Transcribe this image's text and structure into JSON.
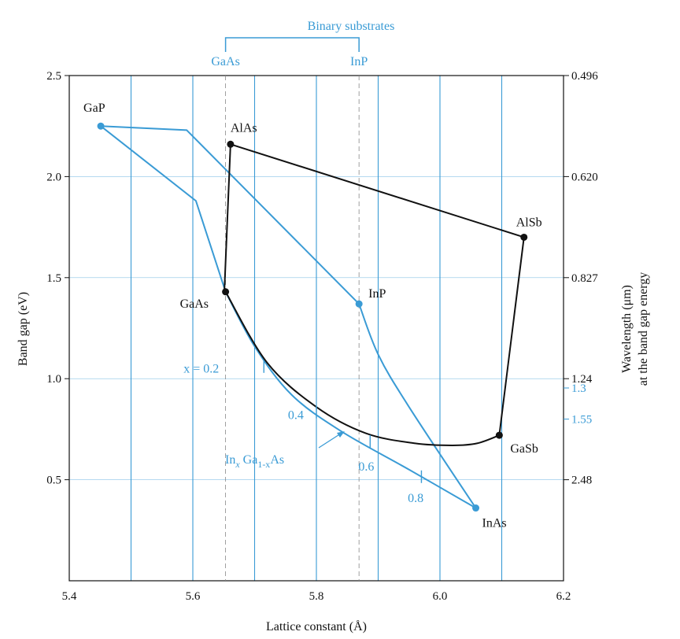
{
  "chart_data": {
    "type": "scatter",
    "xlabel": "Lattice constant (Å)",
    "ylabel": "Band gap (eV)",
    "y2label_line1": "Wavelength (μm)",
    "y2label_line2": "at the band gap energy",
    "xlim": [
      5.4,
      6.2
    ],
    "ylim": [
      0,
      2.5
    ],
    "grid": "vertical",
    "x_ticks": [
      "5.4",
      "5.6",
      "5.8",
      "6.0",
      "6.2"
    ],
    "x_tick_values": [
      5.4,
      5.6,
      5.8,
      6.0,
      6.2
    ],
    "y_ticks": [
      "0.5",
      "1.0",
      "1.5",
      "2.0",
      "2.5"
    ],
    "y_tick_values": [
      0.5,
      1.0,
      1.5,
      2.0,
      2.5
    ],
    "wavelength_ticks": [
      {
        "label": "0.496",
        "y": 2.5,
        "color": "black"
      },
      {
        "label": "0.620",
        "y": 2.0,
        "color": "black"
      },
      {
        "label": "0.827",
        "y": 1.5,
        "color": "black"
      },
      {
        "label": "1.24",
        "y": 1.0,
        "color": "black"
      },
      {
        "label": "1.3",
        "y": 0.954,
        "color": "blue"
      },
      {
        "label": "1.55",
        "y": 0.8,
        "color": "blue"
      },
      {
        "label": "2.48",
        "y": 0.5,
        "color": "black"
      }
    ],
    "points": [
      {
        "name": "GaP",
        "x": 5.451,
        "y": 2.25,
        "color": "blue"
      },
      {
        "name": "AlAs",
        "x": 5.661,
        "y": 2.16,
        "color": "black"
      },
      {
        "name": "AlSb",
        "x": 6.136,
        "y": 1.7,
        "color": "black"
      },
      {
        "name": "GaAs",
        "x": 5.653,
        "y": 1.43,
        "color": "black"
      },
      {
        "name": "InP",
        "x": 5.869,
        "y": 1.37,
        "color": "blue"
      },
      {
        "name": "GaSb",
        "x": 6.096,
        "y": 0.72,
        "color": "black"
      },
      {
        "name": "InAs",
        "x": 6.058,
        "y": 0.36,
        "color": "blue"
      }
    ],
    "curves": [
      {
        "color": "blue",
        "points": [
          [
            5.451,
            2.25
          ],
          [
            5.59,
            2.23
          ],
          [
            5.869,
            1.37
          ]
        ]
      },
      {
        "color": "blue",
        "points": [
          [
            5.451,
            2.25
          ],
          [
            5.605,
            1.88
          ],
          [
            5.653,
            1.43
          ]
        ]
      },
      {
        "color": "blue",
        "points": [
          [
            5.869,
            1.37
          ],
          [
            5.9,
            1.12
          ],
          [
            5.95,
            0.86
          ],
          [
            6.058,
            0.36
          ]
        ]
      },
      {
        "color": "blue",
        "points": [
          [
            5.653,
            1.43
          ],
          [
            5.7,
            1.16
          ],
          [
            5.76,
            0.92
          ],
          [
            5.84,
            0.74
          ],
          [
            5.95,
            0.55
          ],
          [
            6.058,
            0.36
          ]
        ]
      },
      {
        "color": "black",
        "points": [
          [
            5.651,
            1.43
          ],
          [
            5.661,
            2.16
          ]
        ]
      },
      {
        "color": "black",
        "points": [
          [
            5.661,
            2.16
          ],
          [
            6.136,
            1.7
          ]
        ]
      },
      {
        "color": "black",
        "points": [
          [
            6.136,
            1.7
          ],
          [
            6.096,
            0.72
          ]
        ]
      },
      {
        "color": "black",
        "points": [
          [
            6.096,
            0.72
          ],
          [
            6.06,
            0.68
          ],
          [
            6.02,
            0.67
          ],
          [
            5.96,
            0.68
          ],
          [
            5.88,
            0.73
          ],
          [
            5.8,
            0.86
          ],
          [
            5.72,
            1.08
          ],
          [
            5.653,
            1.43
          ]
        ]
      }
    ],
    "composition_marks": [
      {
        "label": "x = 0.2",
        "x": 5.715,
        "y": 1.06,
        "label_x": 5.585,
        "label_y": 1.03
      },
      {
        "label": "0.4",
        "x": 5.8,
        "y": 0.835,
        "label_x": 5.754,
        "label_y": 0.8
      },
      {
        "label": "0.6",
        "x": 5.887,
        "y": 0.69,
        "label_x": 5.868,
        "label_y": 0.545
      },
      {
        "label": "0.8",
        "x": 5.97,
        "y": 0.515,
        "label_x": 5.948,
        "label_y": 0.39
      }
    ],
    "alloy_label": {
      "prefix": "In",
      "sub1": "x",
      "mid": " Ga",
      "sub2": "1-x",
      "suffix": "As"
    },
    "binary_substrates": {
      "title": "Binary substrates",
      "items": [
        {
          "label": "GaAs",
          "x": 5.653
        },
        {
          "label": "InP",
          "x": 5.869
        }
      ]
    }
  },
  "colors": {
    "blue": "#3a9bd5",
    "black": "#111111"
  }
}
